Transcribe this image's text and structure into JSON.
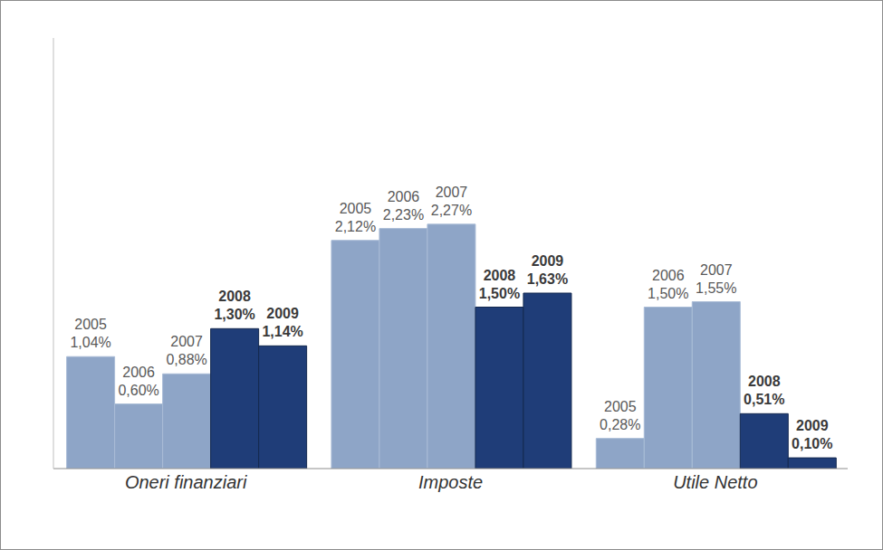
{
  "chart_data": {
    "type": "bar",
    "categories": [
      "Oneri finanziari",
      "Imposte",
      "Utile Netto"
    ],
    "series": [
      {
        "name": "2005",
        "color": "#8ea5c7",
        "values": [
          1.04,
          2.12,
          0.28
        ],
        "value_labels": [
          "1,04%",
          "2,12%",
          "0,28%"
        ]
      },
      {
        "name": "2006",
        "color": "#8ea5c7",
        "values": [
          0.6,
          2.23,
          1.5
        ],
        "value_labels": [
          "0,60%",
          "2,23%",
          "1,50%"
        ]
      },
      {
        "name": "2007",
        "color": "#8ea5c7",
        "values": [
          0.88,
          2.27,
          1.55
        ],
        "value_labels": [
          "0,88%",
          "2,27%",
          "1,55%"
        ]
      },
      {
        "name": "2008",
        "color": "#1f3d78",
        "values": [
          1.3,
          1.5,
          0.51
        ],
        "value_labels": [
          "1,30%",
          "1,50%",
          "0,51%"
        ]
      },
      {
        "name": "2009",
        "color": "#1f3d78",
        "values": [
          1.14,
          1.63,
          0.1
        ],
        "value_labels": [
          "1,14%",
          "1,63%",
          "0,10%"
        ]
      }
    ],
    "ylim": [
      0,
      4
    ],
    "data_labels": true,
    "tick_labels": "x",
    "grid": false
  }
}
